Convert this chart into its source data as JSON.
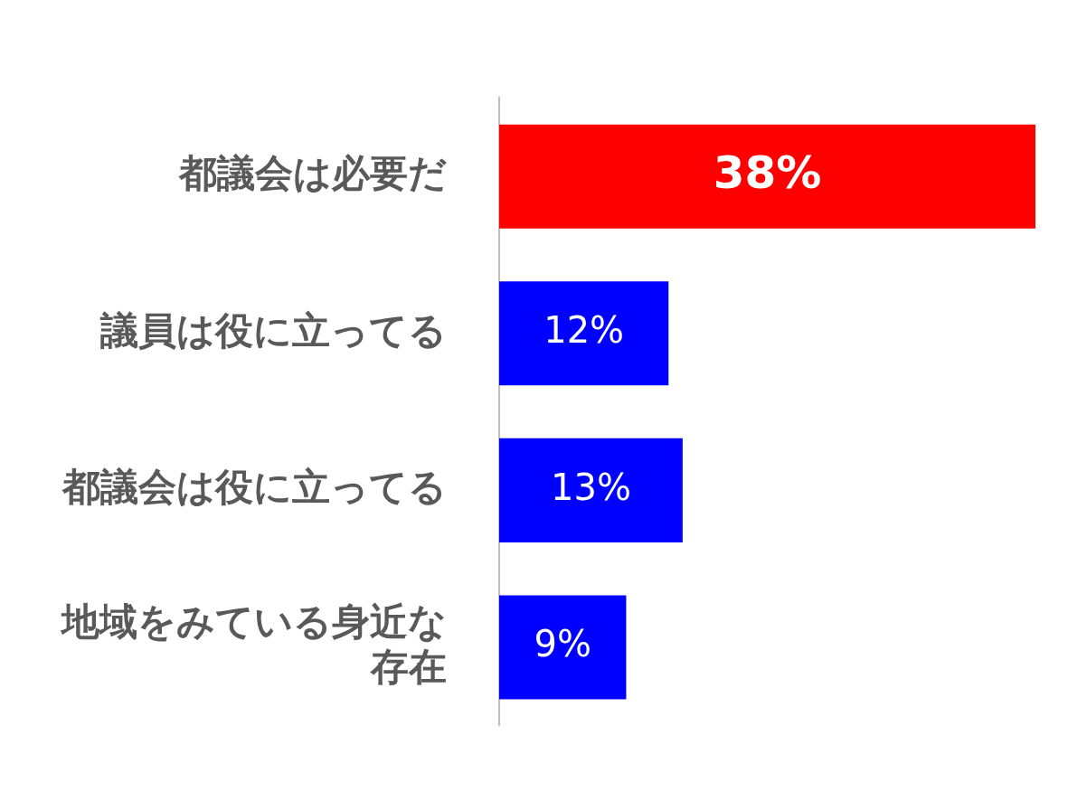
{
  "chart_data": {
    "type": "bar",
    "orientation": "horizontal",
    "categories": [
      "都議会は必要だ",
      "議員は役に立ってる",
      "都議会は役に立ってる",
      "地域をみている身近な存在"
    ],
    "values": [
      38,
      12,
      13,
      9
    ],
    "colors": [
      "#ff0000",
      "#0000ff",
      "#0000ff",
      "#0000ff"
    ],
    "value_labels": [
      "38%",
      "12%",
      "13%",
      "9%"
    ],
    "xlim": [
      0,
      38
    ],
    "tick_labels": "y",
    "legend": false
  }
}
